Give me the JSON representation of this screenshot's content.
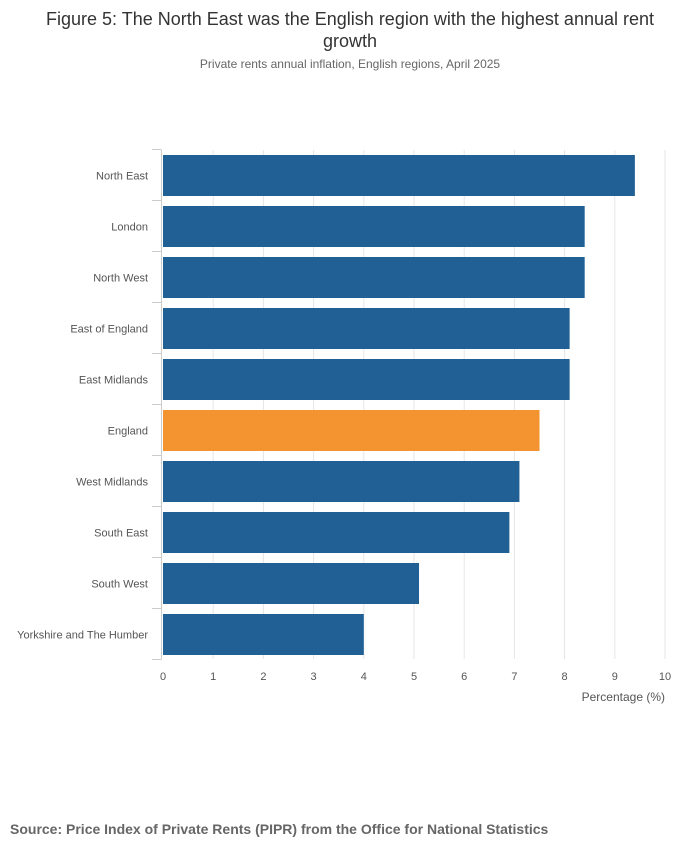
{
  "title": "Figure 5: The North East was the English region with the highest annual rent growth",
  "subtitle": "Private rents annual inflation, English regions, April 2025",
  "source": "Source: Price Index of Private Rents (PIPR) from the Office for National Statistics",
  "chart_data": {
    "type": "bar",
    "orientation": "horizontal",
    "categories": [
      "North East",
      "London",
      "North West",
      "East of England",
      "East Midlands",
      "England",
      "West Midlands",
      "South East",
      "South West",
      "Yorkshire and The Humber"
    ],
    "values": [
      9.4,
      8.4,
      8.4,
      8.1,
      8.1,
      7.5,
      7.1,
      6.9,
      5.1,
      4.0
    ],
    "highlight": "England",
    "xlabel": "Percentage (%)",
    "ylabel": "",
    "xlim": [
      0,
      10
    ],
    "ticks": [
      0,
      1,
      2,
      3,
      4,
      5,
      6,
      7,
      8,
      9,
      10
    ],
    "grid": true,
    "colors": {
      "bar": "#206095",
      "highlight": "#f39431",
      "grid": "#e6e6e6",
      "axis": "#cccccc",
      "label": "#555555"
    }
  }
}
